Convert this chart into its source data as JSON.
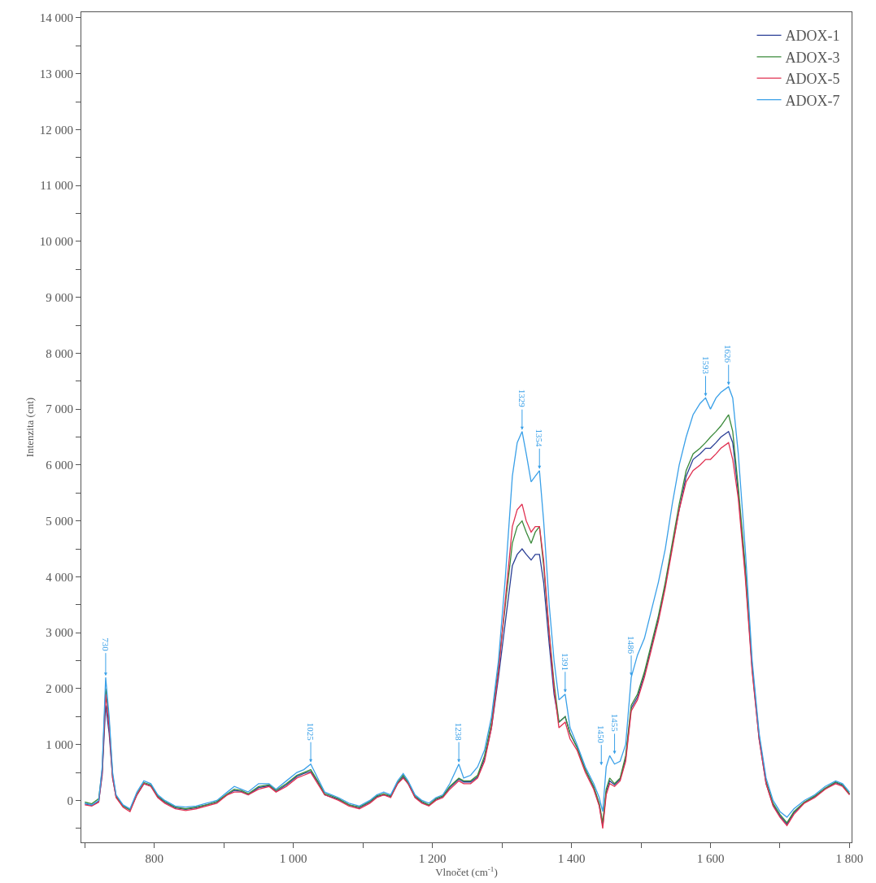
{
  "chart_data": {
    "type": "line",
    "xlabel": "Vlnočet (cm$^{-1}$)",
    "ylabel": "Intenzita (cnt)",
    "x": [
      700,
      710,
      720,
      725,
      730,
      735,
      740,
      745,
      755,
      765,
      775,
      785,
      795,
      805,
      815,
      830,
      845,
      860,
      875,
      890,
      905,
      915,
      925,
      935,
      950,
      965,
      975,
      990,
      1005,
      1015,
      1025,
      1035,
      1045,
      1055,
      1065,
      1080,
      1095,
      1110,
      1120,
      1130,
      1140,
      1150,
      1158,
      1165,
      1175,
      1185,
      1195,
      1205,
      1215,
      1225,
      1238,
      1245,
      1255,
      1265,
      1275,
      1285,
      1295,
      1305,
      1315,
      1322,
      1329,
      1335,
      1342,
      1348,
      1354,
      1360,
      1368,
      1375,
      1382,
      1391,
      1398,
      1408,
      1420,
      1432,
      1440,
      1445,
      1450,
      1455,
      1462,
      1470,
      1478,
      1486,
      1495,
      1505,
      1515,
      1525,
      1535,
      1545,
      1555,
      1565,
      1575,
      1585,
      1593,
      1600,
      1608,
      1615,
      1626,
      1632,
      1640,
      1650,
      1660,
      1670,
      1680,
      1690,
      1700,
      1710,
      1720,
      1735,
      1750,
      1765,
      1780,
      1790,
      1800
    ],
    "series": [
      {
        "name": "ADOX-1",
        "color": "#2b3f96",
        "values": [
          -60,
          -90,
          -20,
          450,
          1700,
          1200,
          400,
          60,
          -100,
          -170,
          100,
          300,
          260,
          60,
          -30,
          -130,
          -160,
          -130,
          -80,
          -30,
          100,
          180,
          160,
          100,
          230,
          260,
          160,
          280,
          430,
          480,
          520,
          330,
          100,
          60,
          20,
          -80,
          -130,
          -30,
          70,
          100,
          70,
          300,
          420,
          300,
          60,
          -30,
          -90,
          20,
          70,
          230,
          380,
          330,
          330,
          420,
          750,
          1300,
          2200,
          3200,
          4200,
          4400,
          4500,
          4400,
          4300,
          4400,
          4400,
          3900,
          2800,
          1900,
          1400,
          1500,
          1200,
          950,
          550,
          230,
          -80,
          -450,
          150,
          350,
          280,
          380,
          750,
          1650,
          1850,
          2250,
          2750,
          3250,
          3850,
          4550,
          5200,
          5800,
          6100,
          6200,
          6300,
          6300,
          6400,
          6500,
          6600,
          6400,
          5500,
          4100,
          2350,
          1100,
          300,
          -80,
          -280,
          -420,
          -220,
          -40,
          70,
          210,
          320,
          270,
          110
        ]
      },
      {
        "name": "ADOX-3",
        "color": "#3a8a3a",
        "values": [
          -30,
          -60,
          30,
          550,
          2000,
          1400,
          450,
          80,
          -100,
          -170,
          120,
          320,
          280,
          80,
          -20,
          -120,
          -150,
          -120,
          -80,
          -20,
          120,
          200,
          180,
          120,
          250,
          280,
          180,
          300,
          450,
          500,
          550,
          350,
          120,
          80,
          30,
          -80,
          -120,
          -20,
          80,
          120,
          80,
          320,
          450,
          320,
          80,
          -20,
          -80,
          30,
          80,
          250,
          400,
          350,
          350,
          450,
          800,
          1400,
          2400,
          3500,
          4600,
          4900,
          5000,
          4800,
          4600,
          4800,
          4900,
          4200,
          3000,
          2100,
          1400,
          1500,
          1200,
          950,
          550,
          250,
          -50,
          -400,
          200,
          400,
          300,
          400,
          800,
          1700,
          1900,
          2300,
          2800,
          3300,
          3900,
          4600,
          5300,
          5900,
          6200,
          6300,
          6400,
          6500,
          6600,
          6700,
          6900,
          6600,
          5600,
          4200,
          2400,
          1150,
          350,
          -50,
          -250,
          -400,
          -200,
          -30,
          80,
          220,
          330,
          280,
          120
        ]
      },
      {
        "name": "ADOX-5",
        "color": "#e03050",
        "values": [
          -80,
          -100,
          -30,
          500,
          1900,
          1300,
          400,
          50,
          -120,
          -200,
          100,
          300,
          250,
          50,
          -50,
          -150,
          -180,
          -150,
          -100,
          -50,
          100,
          150,
          150,
          100,
          200,
          250,
          150,
          250,
          400,
          450,
          500,
          300,
          100,
          50,
          0,
          -100,
          -150,
          -50,
          50,
          100,
          50,
          300,
          400,
          300,
          50,
          -50,
          -100,
          0,
          50,
          200,
          350,
          300,
          300,
          400,
          700,
          1300,
          2300,
          3600,
          4900,
          5200,
          5300,
          5000,
          4800,
          4900,
          4900,
          4300,
          3000,
          2000,
          1300,
          1400,
          1100,
          900,
          500,
          200,
          -100,
          -500,
          100,
          300,
          250,
          350,
          700,
          1600,
          1800,
          2200,
          2700,
          3200,
          3800,
          4500,
          5200,
          5700,
          5900,
          6000,
          6100,
          6100,
          6200,
          6300,
          6400,
          6100,
          5400,
          4000,
          2300,
          1100,
          300,
          -100,
          -300,
          -450,
          -250,
          -50,
          50,
          200,
          300,
          250,
          100
        ]
      },
      {
        "name": "ADOX-7",
        "color": "#3aa0e8",
        "values": [
          -50,
          -80,
          0,
          600,
          2200,
          1500,
          500,
          100,
          -80,
          -150,
          150,
          350,
          300,
          100,
          0,
          -100,
          -120,
          -100,
          -50,
          0,
          150,
          250,
          200,
          150,
          300,
          300,
          200,
          350,
          500,
          550,
          650,
          400,
          150,
          100,
          50,
          -50,
          -100,
          0,
          100,
          150,
          100,
          350,
          480,
          350,
          100,
          0,
          -50,
          50,
          100,
          300,
          650,
          400,
          450,
          600,
          900,
          1500,
          2500,
          4000,
          5800,
          6400,
          6600,
          6200,
          5700,
          5800,
          5900,
          5000,
          3500,
          2500,
          1800,
          1900,
          1300,
          1000,
          600,
          300,
          50,
          -200,
          600,
          800,
          650,
          700,
          1000,
          2200,
          2600,
          2900,
          3400,
          3900,
          4500,
          5300,
          6000,
          6500,
          6900,
          7100,
          7200,
          7000,
          7200,
          7300,
          7400,
          7200,
          6200,
          4500,
          2500,
          1200,
          400,
          0,
          -200,
          -300,
          -150,
          0,
          100,
          250,
          350,
          300,
          150
        ]
      }
    ],
    "annotations": [
      {
        "text": "730",
        "x": 730,
        "y": 2200
      },
      {
        "text": "1025",
        "x": 1025,
        "y": 650
      },
      {
        "text": "1238",
        "x": 1238,
        "y": 650
      },
      {
        "text": "1329",
        "x": 1329,
        "y": 6600
      },
      {
        "text": "1354",
        "x": 1354,
        "y": 5900
      },
      {
        "text": "1391",
        "x": 1391,
        "y": 1900
      },
      {
        "text": "1450",
        "x": 1450,
        "y": 600
      },
      {
        "text": "1455",
        "x": 1455,
        "y": 800
      },
      {
        "text": "1486",
        "x": 1486,
        "y": 2200
      },
      {
        "text": "1593",
        "x": 1593,
        "y": 7200
      },
      {
        "text": "1626",
        "x": 1626,
        "y": 7400
      }
    ],
    "xlim": [
      695,
      1803
    ],
    "xticks": [
      {
        "value": 700,
        "label": null
      },
      800,
      {
        "value": 900,
        "label": null
      },
      {
        "value": 1000,
        "label": "1 000"
      },
      {
        "value": 1100,
        "label": null
      },
      {
        "value": 1200,
        "label": "1 200"
      },
      {
        "value": 1300,
        "label": null
      },
      {
        "value": 1400,
        "label": "1 400"
      },
      {
        "value": 1500,
        "label": null
      },
      {
        "value": 1600,
        "label": "1 600"
      },
      {
        "value": 1700,
        "label": null
      },
      {
        "value": 1800,
        "label": "1 800"
      }
    ],
    "ylim": [
      -750,
      14100
    ],
    "yticks": [
      {
        "value": -500,
        "label": null
      },
      0,
      {
        "value": 500,
        "label": null
      },
      {
        "value": 1000,
        "label": "1 000"
      },
      {
        "value": 1500,
        "label": null
      },
      {
        "value": 2000,
        "label": "2 000"
      },
      {
        "value": 2500,
        "label": null
      },
      {
        "value": 3000,
        "label": "3 000"
      },
      {
        "value": 3500,
        "label": null
      },
      {
        "value": 4000,
        "label": "4 000"
      },
      {
        "value": 4500,
        "label": null
      },
      {
        "value": 5000,
        "label": "5 000"
      },
      {
        "value": 5500,
        "label": null
      },
      {
        "value": 6000,
        "label": "6 000"
      },
      {
        "value": 6500,
        "label": null
      },
      {
        "value": 7000,
        "label": "7 000"
      },
      {
        "value": 7500,
        "label": null
      },
      {
        "value": 8000,
        "label": "8 000"
      },
      {
        "value": 8500,
        "label": null
      },
      {
        "value": 9000,
        "label": "9 000"
      },
      {
        "value": 9500,
        "label": null
      },
      {
        "value": 10000,
        "label": "10 000"
      },
      {
        "value": 10500,
        "label": null
      },
      {
        "value": 11000,
        "label": "11 000"
      },
      {
        "value": 11500,
        "label": null
      },
      {
        "value": 12000,
        "label": "12 000"
      },
      {
        "value": 12500,
        "label": null
      },
      {
        "value": 13000,
        "label": "13 000"
      },
      {
        "value": 13500,
        "label": null
      },
      {
        "value": 14000,
        "label": "14 000"
      }
    ],
    "legend": "top right",
    "marker": "none",
    "line_style": "solid"
  }
}
